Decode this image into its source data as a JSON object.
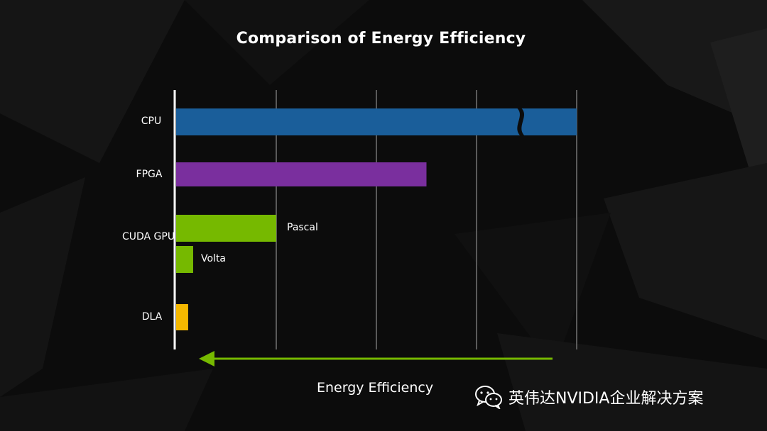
{
  "chart_data": {
    "type": "bar",
    "orientation": "horizontal",
    "title": "Comparison of Energy Efficiency",
    "xlabel": "Energy Efficiency",
    "ylabel": "",
    "categories": [
      "CPU",
      "FPGA",
      "CUDA GPU",
      "DLA"
    ],
    "bars": [
      {
        "category": "CPU",
        "label": "",
        "value": 4.0,
        "color": "#1a5e9a",
        "axis_break": true
      },
      {
        "category": "FPGA",
        "label": "",
        "value": 2.5,
        "color": "#7a2f9e"
      },
      {
        "category": "CUDA GPU",
        "label": "Pascal",
        "value": 1.0,
        "color": "#76b900"
      },
      {
        "category": "CUDA GPU",
        "label": "Volta",
        "value": 0.17,
        "color": "#76b900"
      },
      {
        "category": "DLA",
        "label": "",
        "value": 0.12,
        "color": "#f5b800"
      }
    ],
    "xlim": [
      0,
      4
    ],
    "grid": true,
    "arrow_direction": "left",
    "arrow_color": "#76b900"
  },
  "watermark": {
    "text": "英伟达NVIDIA企业解决方案",
    "icon": "wechat-icon"
  }
}
